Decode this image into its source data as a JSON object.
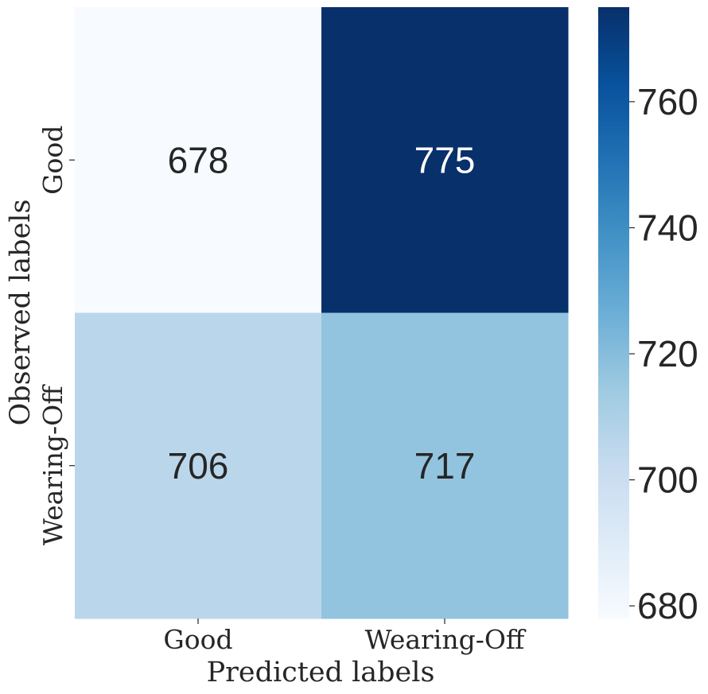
{
  "chart_data": {
    "type": "heatmap",
    "title": "",
    "xlabel": "Predicted labels",
    "ylabel": "Observed labels",
    "x_categories": [
      "Good",
      "Wearing-Off"
    ],
    "y_categories": [
      "Good",
      "Wearing-Off"
    ],
    "values": [
      [
        678,
        775
      ],
      [
        706,
        717
      ]
    ],
    "colormap": "Blues",
    "colorbar": {
      "range": [
        678,
        775
      ],
      "ticks": [
        680,
        700,
        720,
        740,
        760
      ],
      "tick_labels": [
        "680",
        "700",
        "720",
        "740",
        "760"
      ]
    },
    "colors": {
      "low": "#f7fbff",
      "high": "#08306b",
      "text_dark": "#262626",
      "text_light": "#ffffff"
    }
  }
}
